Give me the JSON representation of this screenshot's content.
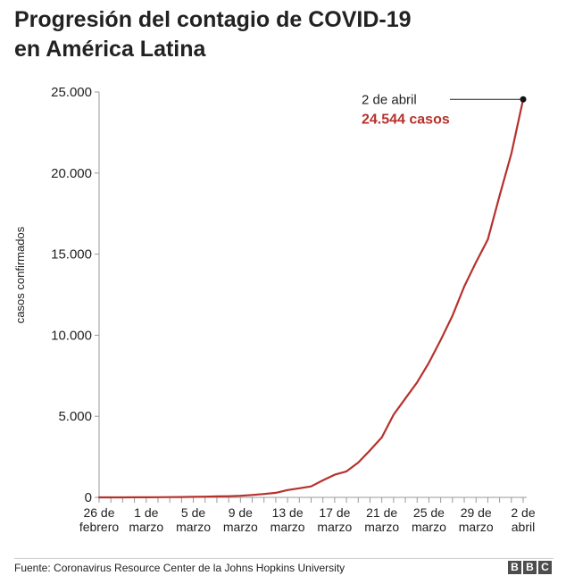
{
  "title": {
    "line1": "Progresión del contagio de COVID-19",
    "line2": "en América Latina"
  },
  "source": "Fuente: Coronavirus Resource Center de la Johns Hopkins University",
  "logo": [
    "B",
    "B",
    "C"
  ],
  "annotation": {
    "date": "2 de abril",
    "value_label": "24.544 casos"
  },
  "colors": {
    "line": "#b5312c",
    "annotation_value": "#b5312c",
    "text": "#222222"
  },
  "chart_data": {
    "type": "line",
    "ylabel": "casos confirmados",
    "ylim": [
      0,
      25000
    ],
    "y_ticks": [
      {
        "value": 0,
        "label": "0"
      },
      {
        "value": 5000,
        "label": "5.000"
      },
      {
        "value": 10000,
        "label": "10.000"
      },
      {
        "value": 15000,
        "label": "15.000"
      },
      {
        "value": 20000,
        "label": "20.000"
      },
      {
        "value": 25000,
        "label": "25.000"
      }
    ],
    "x_dates": [
      "2020-02-26",
      "2020-02-27",
      "2020-02-28",
      "2020-02-29",
      "2020-03-01",
      "2020-03-02",
      "2020-03-03",
      "2020-03-04",
      "2020-03-05",
      "2020-03-06",
      "2020-03-07",
      "2020-03-08",
      "2020-03-09",
      "2020-03-10",
      "2020-03-11",
      "2020-03-12",
      "2020-03-13",
      "2020-03-14",
      "2020-03-15",
      "2020-03-16",
      "2020-03-17",
      "2020-03-18",
      "2020-03-19",
      "2020-03-20",
      "2020-03-21",
      "2020-03-22",
      "2020-03-23",
      "2020-03-24",
      "2020-03-25",
      "2020-03-26",
      "2020-03-27",
      "2020-03-28",
      "2020-03-29",
      "2020-03-30",
      "2020-03-31",
      "2020-04-01",
      "2020-04-02"
    ],
    "x_ticks": [
      {
        "date": "2020-02-26",
        "line1": "26 de",
        "line2": "febrero"
      },
      {
        "date": "2020-03-01",
        "line1": "1 de",
        "line2": "marzo"
      },
      {
        "date": "2020-03-05",
        "line1": "5 de",
        "line2": "marzo"
      },
      {
        "date": "2020-03-09",
        "line1": "9 de",
        "line2": "marzo"
      },
      {
        "date": "2020-03-13",
        "line1": "13 de",
        "line2": "marzo"
      },
      {
        "date": "2020-03-17",
        "line1": "17 de",
        "line2": "marzo"
      },
      {
        "date": "2020-03-21",
        "line1": "21 de",
        "line2": "marzo"
      },
      {
        "date": "2020-03-25",
        "line1": "25 de",
        "line2": "marzo"
      },
      {
        "date": "2020-03-29",
        "line1": "29 de",
        "line2": "marzo"
      },
      {
        "date": "2020-04-02",
        "line1": "2 de",
        "line2": "abril"
      }
    ],
    "series": [
      {
        "values": [
          1,
          2,
          2,
          5,
          8,
          12,
          17,
          24,
          33,
          45,
          58,
          72,
          100,
          150,
          210,
          280,
          450,
          560,
          680,
          1050,
          1400,
          1600,
          2150,
          2900,
          3700,
          5100,
          6100,
          7100,
          8300,
          9700,
          11200,
          13000,
          14500,
          15900,
          18600,
          21200,
          24544
        ]
      }
    ],
    "highlight": {
      "date": "2020-04-02",
      "value": 24544
    },
    "grid": false
  }
}
